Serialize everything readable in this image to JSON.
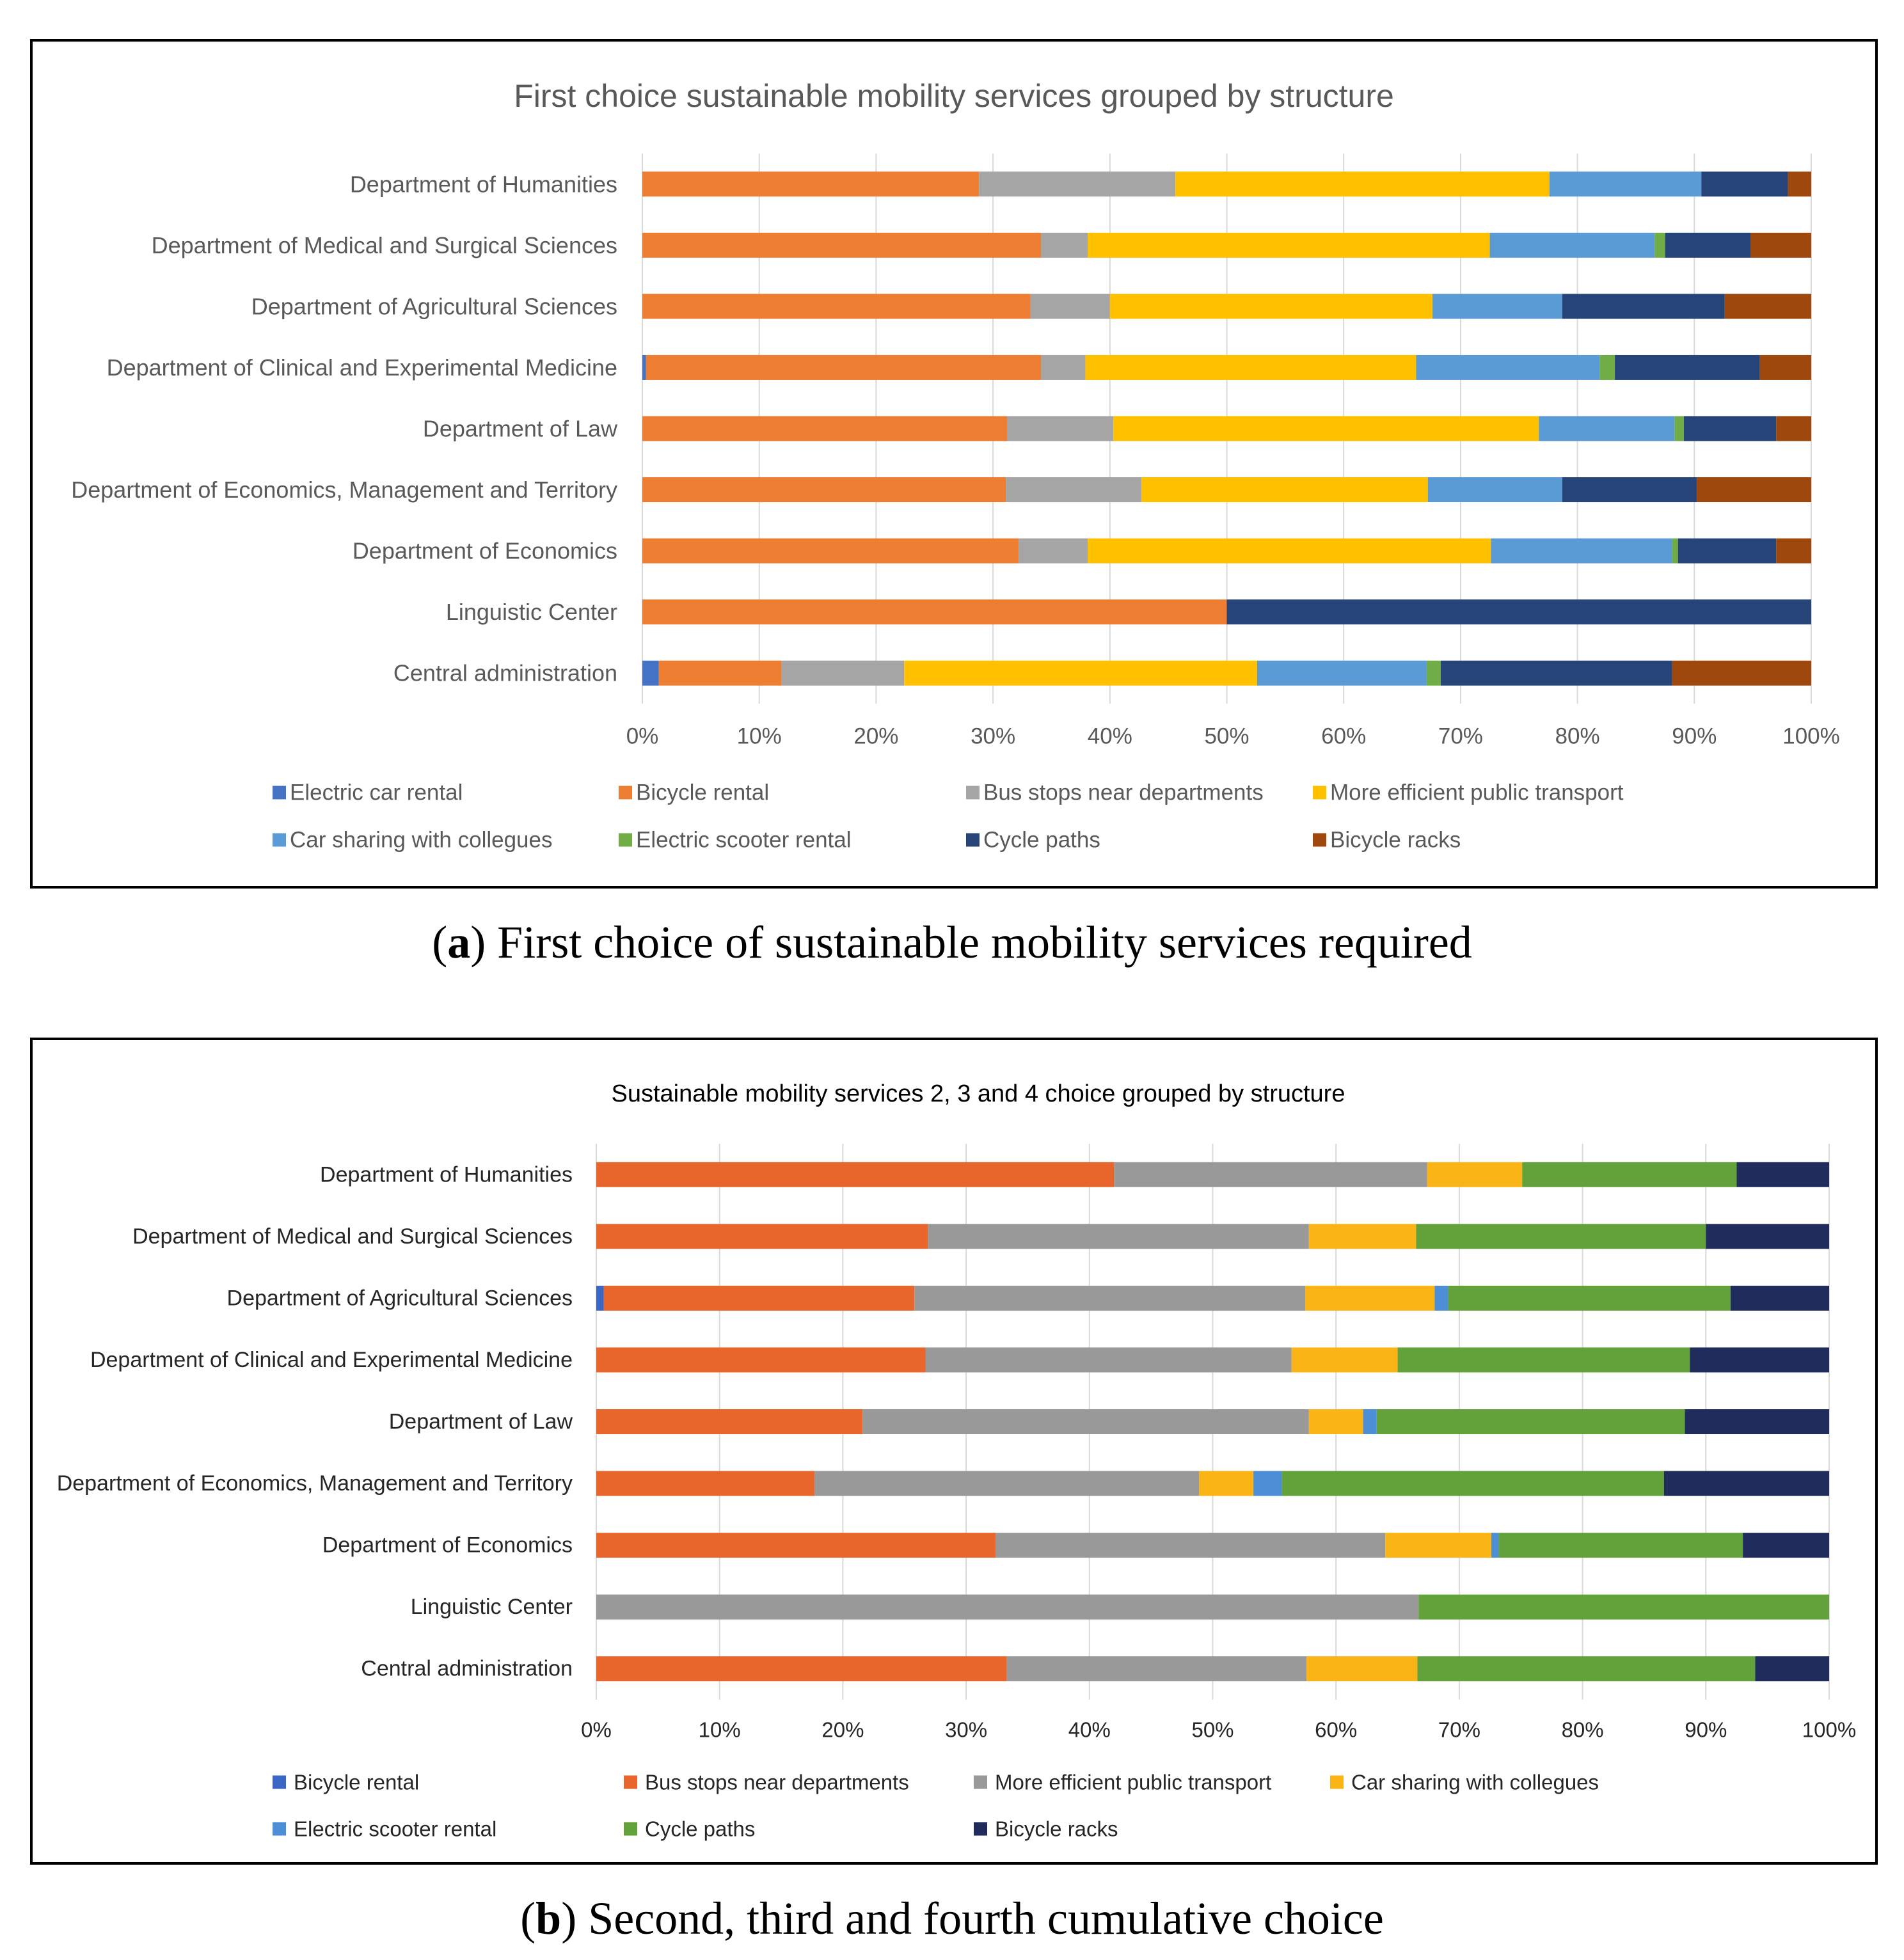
{
  "captions": [
    {
      "open": "(",
      "label": "a",
      "rest": ") First choice of sustainable mobility services required"
    },
    {
      "open": "(",
      "label": "b",
      "rest": ") Second, third and fourth cumulative choice"
    }
  ],
  "chart_data": [
    {
      "type": "bar",
      "stacked": true,
      "horizontal": true,
      "title": "First choice sustainable mobility services grouped by structure",
      "xlim": [
        0,
        100
      ],
      "xticks": [
        "0%",
        "10%",
        "20%",
        "30%",
        "40%",
        "50%",
        "60%",
        "70%",
        "80%",
        "90%",
        "100%"
      ],
      "categories": [
        "Department of Humanities",
        "Department of Medical and Surgical Sciences",
        "Department of Agricultural Sciences",
        "Department of Clinical and Experimental Medicine",
        "Department of Law",
        "Department of Economics, Management and Territory",
        "Department of Economics",
        "Linguistic Center",
        "Central administration"
      ],
      "series": [
        {
          "name": "Electric car rental",
          "color": "#4472C4",
          "values": [
            0,
            0,
            0,
            0.3,
            0,
            0,
            0,
            0,
            1.4
          ]
        },
        {
          "name": "Bicycle rental",
          "color": "#ED7D31",
          "values": [
            28.8,
            34.1,
            33.2,
            33.8,
            31.2,
            31.1,
            32.2,
            50.0,
            10.5
          ]
        },
        {
          "name": "Bus stops near departments",
          "color": "#A5A5A5",
          "values": [
            16.8,
            4.0,
            6.8,
            3.8,
            9.1,
            11.6,
            5.9,
            0,
            10.5
          ]
        },
        {
          "name": "More efficient public transport",
          "color": "#FFC000",
          "values": [
            32.0,
            34.4,
            27.6,
            28.3,
            36.4,
            24.5,
            34.5,
            0,
            30.2
          ]
        },
        {
          "name": "Car sharing with collegues",
          "color": "#5B9BD5",
          "values": [
            13.0,
            14.1,
            11.1,
            15.7,
            11.6,
            11.5,
            15.5,
            0,
            14.5
          ]
        },
        {
          "name": "Electric scooter rental",
          "color": "#70AD47",
          "values": [
            0,
            0.9,
            0,
            1.3,
            0.8,
            0,
            0.5,
            0,
            1.2
          ]
        },
        {
          "name": "Cycle paths",
          "color": "#264478",
          "values": [
            7.4,
            7.3,
            13.9,
            12.4,
            7.9,
            11.5,
            8.4,
            50.0,
            19.8
          ]
        },
        {
          "name": "Bicycle racks",
          "color": "#9E480E",
          "values": [
            2.0,
            5.2,
            7.4,
            4.4,
            3.0,
            9.8,
            3.0,
            0,
            11.9
          ]
        }
      ]
    },
    {
      "type": "bar",
      "stacked": true,
      "horizontal": true,
      "title": "Sustainable mobility services 2, 3 and 4 choice grouped by structure",
      "xlim": [
        0,
        100
      ],
      "xticks": [
        "0%",
        "10%",
        "20%",
        "30%",
        "40%",
        "50%",
        "60%",
        "70%",
        "80%",
        "90%",
        "100%"
      ],
      "categories": [
        "Department of Humanities",
        "Department of Medical and Surgical Sciences",
        "Department of Agricultural Sciences",
        "Department of Clinical and Experimental Medicine",
        "Department of Law",
        "Department of Economics, Management and Territory",
        "Department of Economics",
        "Linguistic Center",
        "Central administration"
      ],
      "series": [
        {
          "name": "Bicycle rental",
          "color": "#3B67C4",
          "values": [
            0,
            0,
            0.6,
            0,
            0,
            0,
            0,
            0,
            0
          ]
        },
        {
          "name": "Bus stops near departments",
          "color": "#E8652B",
          "values": [
            42.0,
            26.9,
            25.2,
            26.7,
            21.6,
            17.7,
            32.4,
            0,
            33.3
          ]
        },
        {
          "name": "More efficient public transport",
          "color": "#999999",
          "values": [
            25.4,
            30.9,
            31.7,
            29.7,
            36.2,
            31.2,
            31.6,
            66.7,
            24.3
          ]
        },
        {
          "name": "Car sharing with collegues",
          "color": "#FBB416",
          "values": [
            7.7,
            8.7,
            10.5,
            8.6,
            4.4,
            4.4,
            8.6,
            0,
            9.0
          ]
        },
        {
          "name": "Electric scooter rental",
          "color": "#4C8FD6",
          "values": [
            0,
            0,
            1.1,
            0,
            1.1,
            2.3,
            0.6,
            0,
            0
          ]
        },
        {
          "name": "Cycle paths",
          "color": "#63A23A",
          "values": [
            17.4,
            23.5,
            22.9,
            23.7,
            25.0,
            31.0,
            19.8,
            33.3,
            27.4
          ]
        },
        {
          "name": "Bicycle racks",
          "color": "#1F2C5C",
          "values": [
            7.5,
            10.0,
            8.0,
            11.3,
            11.7,
            13.4,
            7.0,
            0,
            6.0
          ]
        }
      ]
    }
  ]
}
